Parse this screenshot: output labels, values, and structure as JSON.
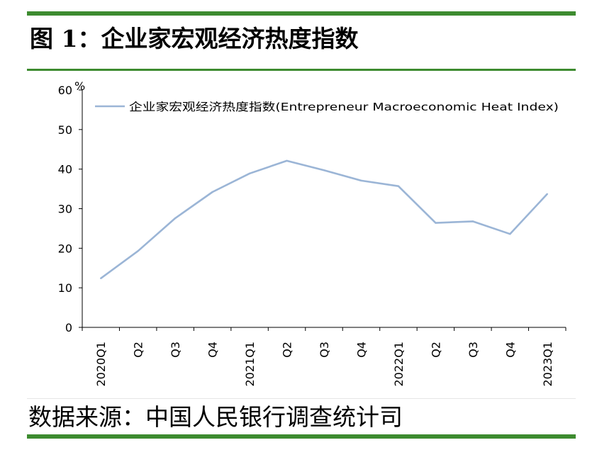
{
  "title": "图 1：企业家宏观经济热度指数",
  "source": "数据来源：中国人民银行调查统计司",
  "colors": {
    "accent_rule": "#3d8b2f",
    "series_line": "#9bb5d6",
    "axis": "#000000"
  },
  "chart_data": {
    "type": "line",
    "ylabel": "%",
    "ylim": [
      0,
      60
    ],
    "yticks": [
      0,
      10,
      20,
      30,
      40,
      50,
      60
    ],
    "categories": [
      "2020Q1",
      "Q2",
      "Q3",
      "Q4",
      "2021Q1",
      "Q2",
      "Q3",
      "Q4",
      "2022Q1",
      "Q2",
      "Q3",
      "Q4",
      "2023Q1"
    ],
    "grid": false,
    "legend_position": "top",
    "series": [
      {
        "name": "企业家宏观经济热度指数(Entrepreneur  Macroeconomic Heat Index)",
        "values": [
          12.4,
          19.3,
          27.6,
          34.2,
          38.9,
          42.1,
          39.7,
          37.1,
          35.7,
          26.4,
          26.8,
          23.6,
          33.7
        ]
      }
    ]
  }
}
